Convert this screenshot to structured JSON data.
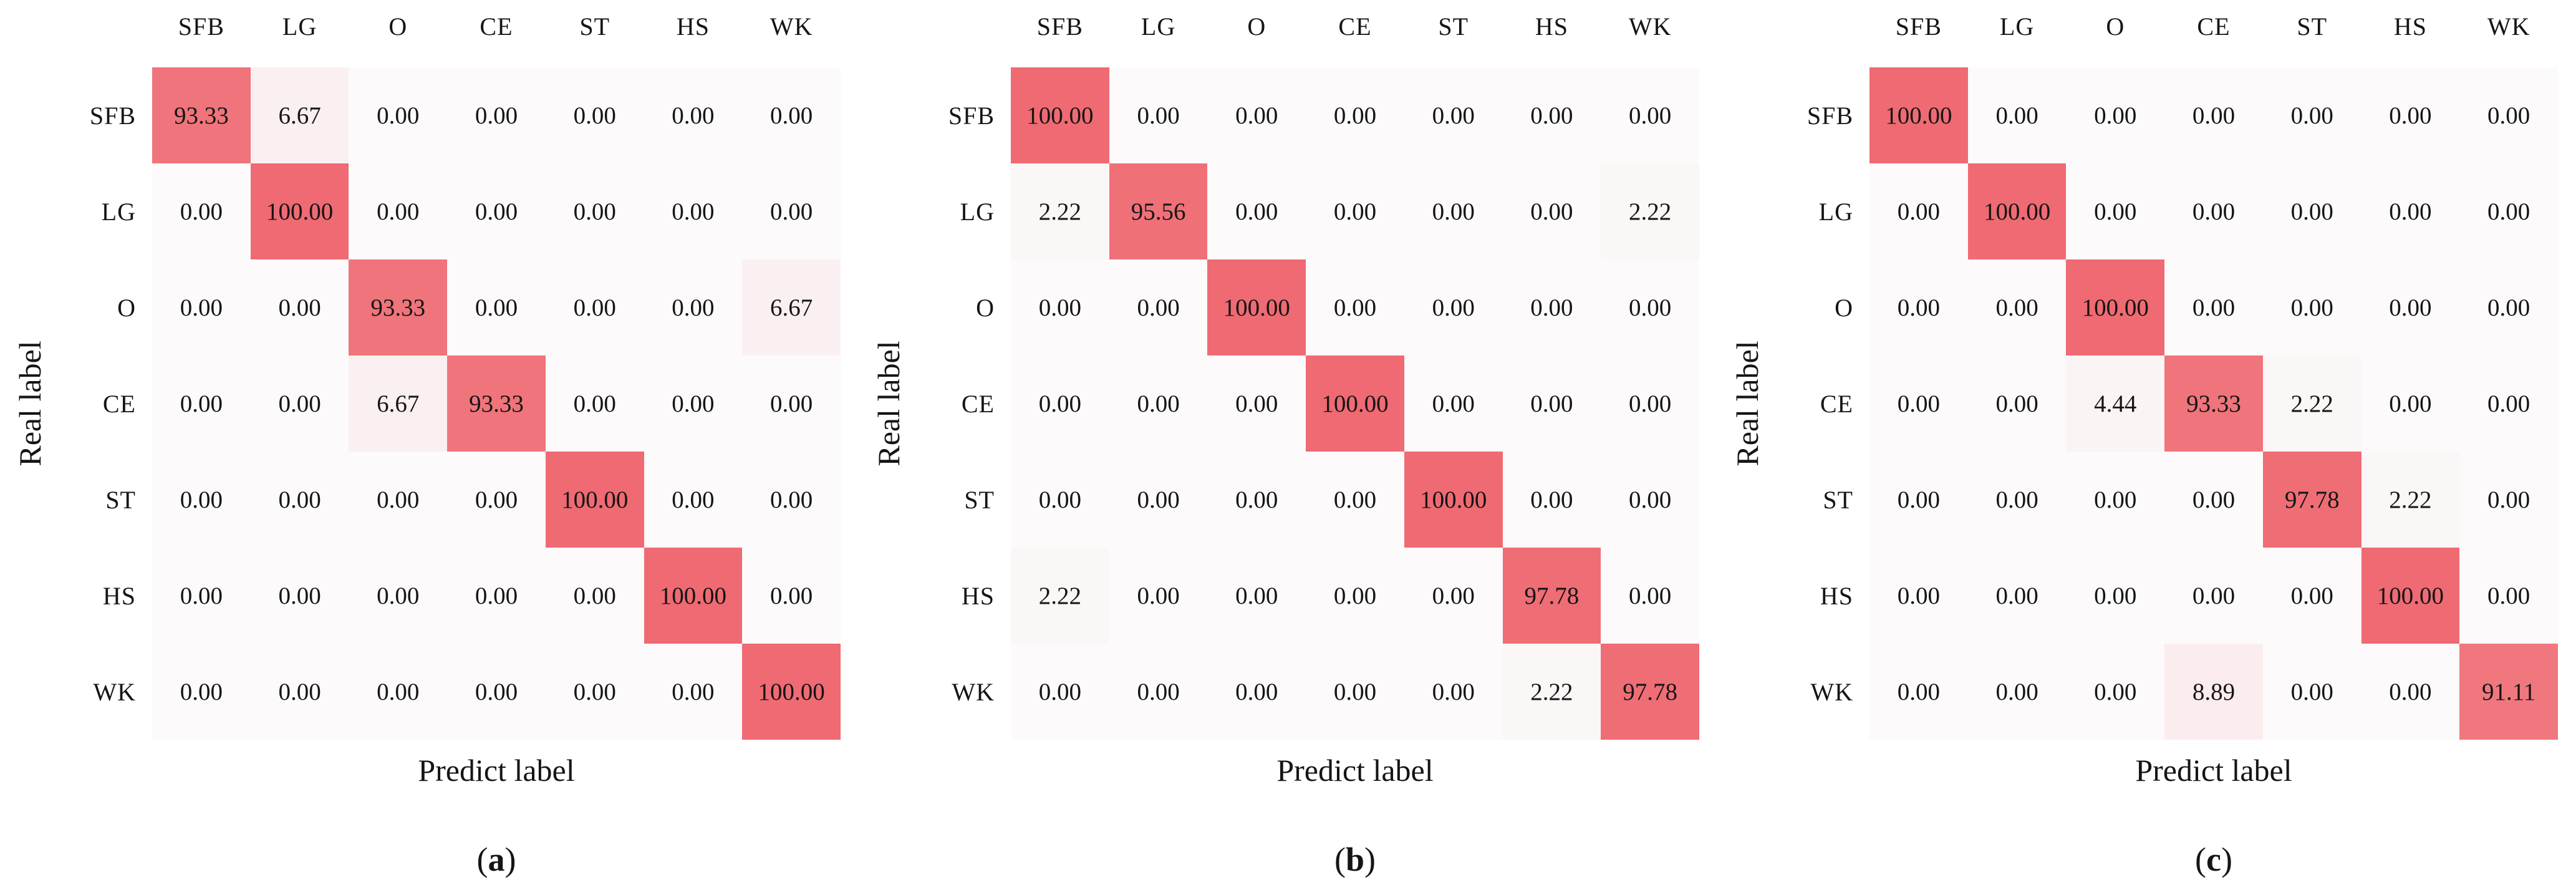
{
  "figure_type": "confusion-matrix-triptych",
  "styles": {
    "diagonal_high_color": "#ef6a72",
    "zero_low_color": "#fcfafa",
    "page_background": "#ffffff",
    "text_color": "#151515",
    "value_decimals": 2
  },
  "chart_data": [
    {
      "type": "heatmap",
      "title": "(a)",
      "caption": {
        "open": "(",
        "letter": "a",
        "close": ")"
      },
      "xlabel": "Predict label",
      "ylabel": "Real label",
      "x_categories": [
        "SFB",
        "LG",
        "O",
        "CE",
        "ST",
        "HS",
        "WK"
      ],
      "y_categories": [
        "SFB",
        "LG",
        "O",
        "CE",
        "ST",
        "HS",
        "WK"
      ],
      "value_range": [
        0,
        100
      ],
      "values_percent": [
        [
          93.33,
          6.67,
          0.0,
          0.0,
          0.0,
          0.0,
          0.0
        ],
        [
          0.0,
          100.0,
          0.0,
          0.0,
          0.0,
          0.0,
          0.0
        ],
        [
          0.0,
          0.0,
          93.33,
          0.0,
          0.0,
          0.0,
          6.67
        ],
        [
          0.0,
          0.0,
          6.67,
          93.33,
          0.0,
          0.0,
          0.0
        ],
        [
          0.0,
          0.0,
          0.0,
          0.0,
          100.0,
          0.0,
          0.0
        ],
        [
          0.0,
          0.0,
          0.0,
          0.0,
          0.0,
          100.0,
          0.0
        ],
        [
          0.0,
          0.0,
          0.0,
          0.0,
          0.0,
          0.0,
          100.0
        ]
      ]
    },
    {
      "type": "heatmap",
      "title": "(b)",
      "caption": {
        "open": "(",
        "letter": "b",
        "close": ")"
      },
      "xlabel": "Predict label",
      "ylabel": "Real label",
      "x_categories": [
        "SFB",
        "LG",
        "O",
        "CE",
        "ST",
        "HS",
        "WK"
      ],
      "y_categories": [
        "SFB",
        "LG",
        "O",
        "CE",
        "ST",
        "HS",
        "WK"
      ],
      "value_range": [
        0,
        100
      ],
      "values_percent": [
        [
          100.0,
          0.0,
          0.0,
          0.0,
          0.0,
          0.0,
          0.0
        ],
        [
          2.22,
          95.56,
          0.0,
          0.0,
          0.0,
          0.0,
          2.22
        ],
        [
          0.0,
          0.0,
          100.0,
          0.0,
          0.0,
          0.0,
          0.0
        ],
        [
          0.0,
          0.0,
          0.0,
          100.0,
          0.0,
          0.0,
          0.0
        ],
        [
          0.0,
          0.0,
          0.0,
          0.0,
          100.0,
          0.0,
          0.0
        ],
        [
          2.22,
          0.0,
          0.0,
          0.0,
          0.0,
          97.78,
          0.0
        ],
        [
          0.0,
          0.0,
          0.0,
          0.0,
          0.0,
          2.22,
          97.78
        ]
      ]
    },
    {
      "type": "heatmap",
      "title": "(c)",
      "caption": {
        "open": "(",
        "letter": "c",
        "close": ")"
      },
      "xlabel": "Predict label",
      "ylabel": "Real label",
      "x_categories": [
        "SFB",
        "LG",
        "O",
        "CE",
        "ST",
        "HS",
        "WK"
      ],
      "y_categories": [
        "SFB",
        "LG",
        "O",
        "CE",
        "ST",
        "HS",
        "WK"
      ],
      "value_range": [
        0,
        100
      ],
      "values_percent": [
        [
          100.0,
          0.0,
          0.0,
          0.0,
          0.0,
          0.0,
          0.0
        ],
        [
          0.0,
          100.0,
          0.0,
          0.0,
          0.0,
          0.0,
          0.0
        ],
        [
          0.0,
          0.0,
          100.0,
          0.0,
          0.0,
          0.0,
          0.0
        ],
        [
          0.0,
          0.0,
          4.44,
          93.33,
          2.22,
          0.0,
          0.0
        ],
        [
          0.0,
          0.0,
          0.0,
          0.0,
          97.78,
          2.22,
          0.0
        ],
        [
          0.0,
          0.0,
          0.0,
          0.0,
          0.0,
          100.0,
          0.0
        ],
        [
          0.0,
          0.0,
          0.0,
          8.89,
          0.0,
          0.0,
          91.11
        ]
      ]
    }
  ]
}
